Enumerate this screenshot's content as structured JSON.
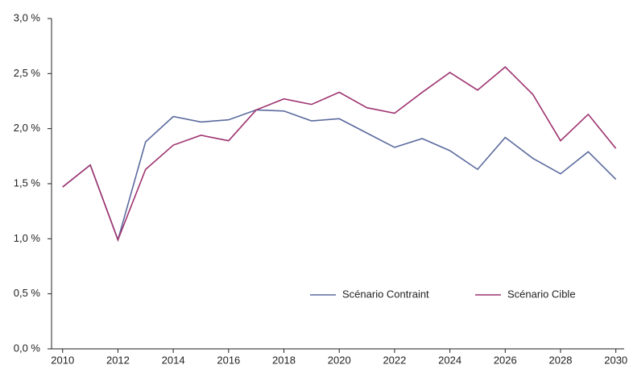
{
  "chart_data": {
    "type": "line",
    "x": [
      2010,
      2011,
      2012,
      2013,
      2014,
      2015,
      2016,
      2017,
      2018,
      2019,
      2020,
      2021,
      2022,
      2023,
      2024,
      2025,
      2026,
      2027,
      2028,
      2029,
      2030
    ],
    "series": [
      {
        "name": "Scénario Contraint",
        "color": "#5b6a9e",
        "values": [
          1.47,
          1.67,
          0.99,
          1.88,
          2.11,
          2.06,
          2.08,
          2.17,
          2.16,
          2.07,
          2.09,
          1.96,
          1.83,
          1.91,
          1.8,
          1.63,
          1.92,
          1.73,
          1.59,
          1.79,
          1.54
        ]
      },
      {
        "name": "Scénario Cible",
        "color": "#9e3470",
        "values": [
          1.47,
          1.67,
          0.99,
          1.63,
          1.85,
          1.94,
          1.89,
          2.17,
          2.27,
          2.22,
          2.33,
          2.19,
          2.14,
          2.33,
          2.51,
          2.35,
          2.56,
          2.31,
          1.89,
          2.13,
          1.82
        ]
      }
    ],
    "xlim": [
      2009.6,
      2030.3
    ],
    "xticks": [
      2010,
      2012,
      2014,
      2016,
      2018,
      2020,
      2022,
      2024,
      2026,
      2028,
      2030
    ],
    "ylim": [
      0,
      3
    ],
    "yticks": [
      {
        "value": 0,
        "label": "0,0 %"
      },
      {
        "value": 0.5,
        "label": "0,5 %"
      },
      {
        "value": 1,
        "label": "1,0 %"
      },
      {
        "value": 1.5,
        "label": "1,5 %"
      },
      {
        "value": 2,
        "label": "2,0 %"
      },
      {
        "value": 2.5,
        "label": "2,5 %"
      },
      {
        "value": 3,
        "label": "3,0 %"
      }
    ],
    "grid": false,
    "legend": "bottom-right"
  }
}
